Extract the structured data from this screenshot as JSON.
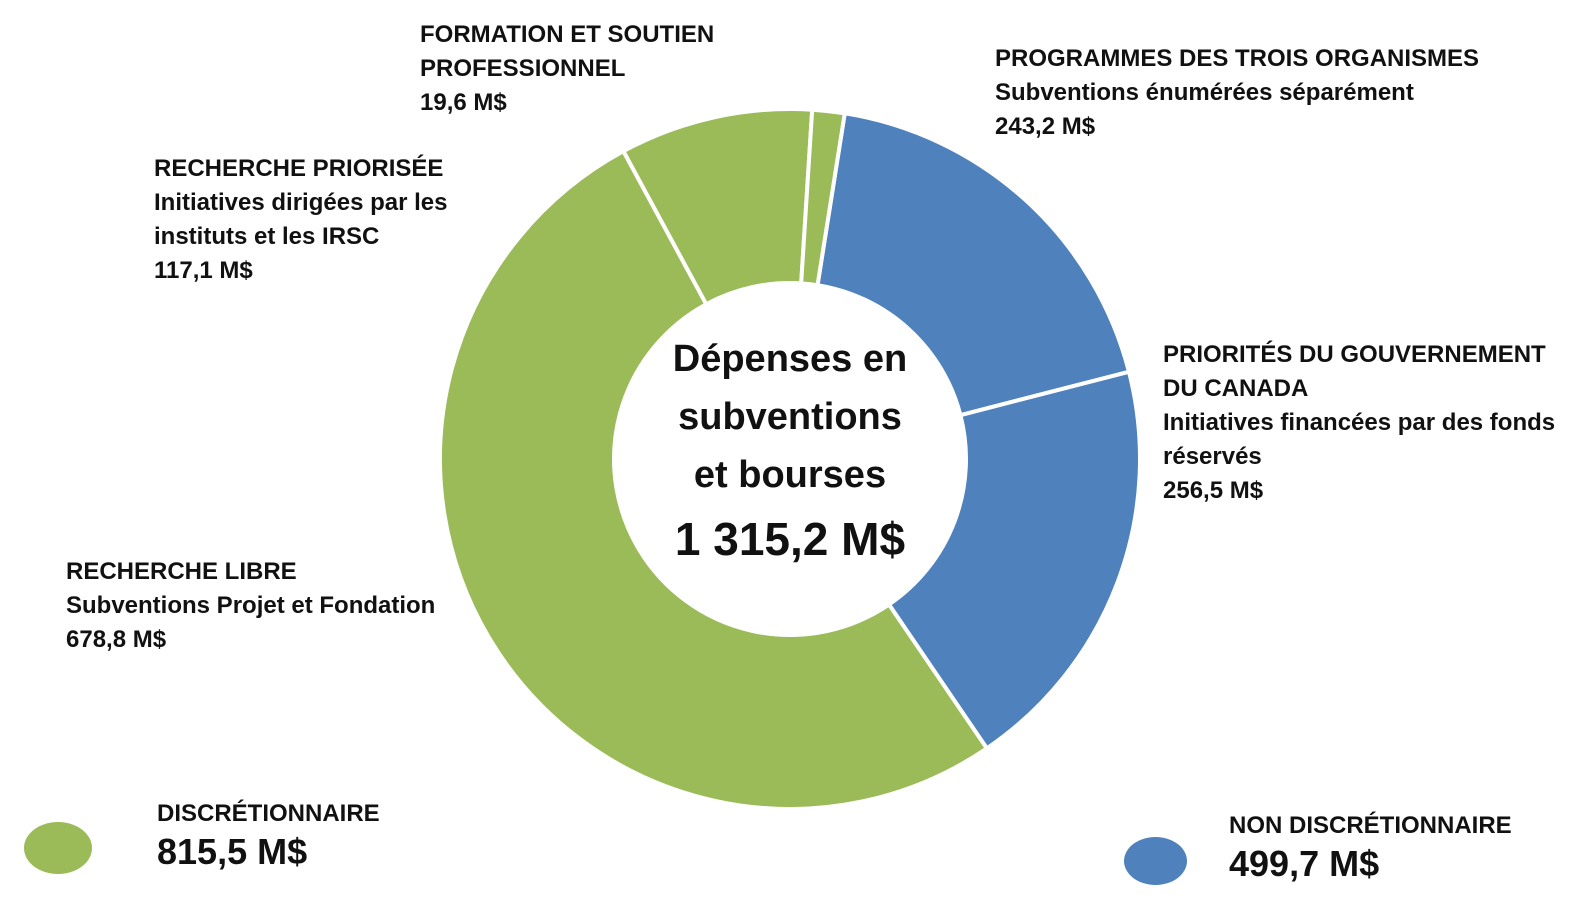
{
  "chart_data": {
    "type": "pie",
    "variant": "donut",
    "center_title_lines": [
      "Dépenses en",
      "subventions",
      "et bourses"
    ],
    "center_total": "1 315,2 M$",
    "colors": {
      "discretionary": "#9bbb59",
      "non_discretionary": "#4f81bd"
    },
    "slices": [
      {
        "key": "trois_organismes",
        "title": "PROGRAMMES DES TROIS ORGANISMES",
        "subtitle_lines": [
          "Subventions énumérées séparément"
        ],
        "value": 243.2,
        "label_value": "243,2 M$",
        "group": "non_discretionary"
      },
      {
        "key": "priorites_gc",
        "title_lines": [
          "PRIORITÉS DU GOUVERNEMENT",
          "DU CANADA"
        ],
        "subtitle_lines": [
          "Initiatives financées par des fonds",
          "réservés"
        ],
        "value": 256.5,
        "label_value": "256,5 M$",
        "group": "non_discretionary"
      },
      {
        "key": "recherche_libre",
        "title": "RECHERCHE LIBRE",
        "subtitle_lines": [
          "Subventions Projet et Fondation"
        ],
        "value": 678.8,
        "label_value": "678,8 M$",
        "group": "discretionary"
      },
      {
        "key": "recherche_priorisee",
        "title": "RECHERCHE PRIORISÉE",
        "subtitle_lines": [
          "Initiatives dirigées par les",
          "instituts et les IRSC"
        ],
        "value": 117.1,
        "label_value": "117,1 M$",
        "group": "discretionary"
      },
      {
        "key": "formation",
        "title_lines": [
          "FORMATION ET SOUTIEN",
          "PROFESSIONNEL"
        ],
        "subtitle_lines": [],
        "value": 19.6,
        "label_value": "19,6 M$",
        "group": "discretionary"
      }
    ],
    "legend": [
      {
        "title": "DISCRÉTIONNAIRE",
        "value": "815,5 M$",
        "group": "discretionary"
      },
      {
        "title": "NON DISCRÉTIONNAIRE",
        "value": "499,7 M$",
        "group": "non_discretionary"
      }
    ]
  },
  "labels": {
    "trois_organismes": {
      "line1": "PROGRAMMES DES TROIS ORGANISMES",
      "line2": "Subventions énumérées séparément",
      "line3": "243,2 M$"
    },
    "priorites_gc": {
      "line1": "PRIORITÉS DU GOUVERNEMENT",
      "line2": "DU CANADA",
      "line3": "Initiatives financées par des fonds",
      "line4": "réservés",
      "line5": "256,5 M$"
    },
    "recherche_libre": {
      "line1": "RECHERCHE LIBRE",
      "line2": "Subventions Projet et Fondation",
      "line3": "678,8 M$"
    },
    "recherche_priorisee": {
      "line1": "RECHERCHE PRIORISÉE",
      "line2": "Initiatives dirigées par les",
      "line3": "instituts et les IRSC",
      "line4": "117,1 M$"
    },
    "formation": {
      "line1": "FORMATION ET SOUTIEN",
      "line2": "PROFESSIONNEL",
      "line3": "19,6 M$"
    }
  },
  "center": {
    "line1": "Dépenses en",
    "line2": "subventions",
    "line3": "et bourses",
    "total": "1 315,2 M$"
  },
  "legend": {
    "discretionary": {
      "title": "DISCRÉTIONNAIRE",
      "value": "815,5 M$"
    },
    "non_discretionary": {
      "title": "NON DISCRÉTIONNAIRE",
      "value": "499,7 M$"
    }
  }
}
